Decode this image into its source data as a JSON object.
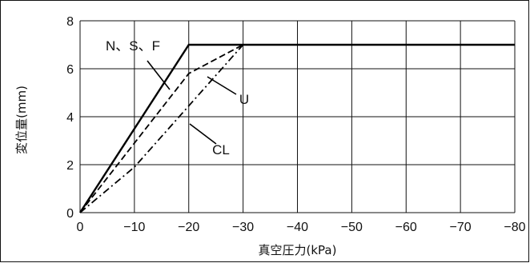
{
  "chart_data": {
    "type": "line",
    "title": "",
    "xlabel": "真空圧力(kPa)",
    "ylabel": "変位量(mm)",
    "xlim": [
      0,
      -80
    ],
    "ylim": [
      0,
      8
    ],
    "x_ticks": [
      0,
      -10,
      -20,
      -30,
      -40,
      -50,
      -60,
      -70,
      -80
    ],
    "x_tick_labels": [
      "0",
      "−10",
      "−20",
      "−30",
      "−40",
      "−50",
      "−60",
      "−70",
      "−80"
    ],
    "y_ticks": [
      0,
      2,
      4,
      6,
      8
    ],
    "y_tick_labels": [
      "0",
      "2",
      "4",
      "6",
      "8"
    ],
    "grid": true,
    "series": [
      {
        "name": "N、S、F",
        "style": "solid",
        "points": [
          [
            0,
            0
          ],
          [
            -20,
            7
          ],
          [
            -80,
            7
          ]
        ]
      },
      {
        "name": "U",
        "style": "dashed",
        "points": [
          [
            0,
            0
          ],
          [
            -20,
            5.8
          ],
          [
            -30,
            7
          ],
          [
            -80,
            7
          ]
        ]
      },
      {
        "name": "CL",
        "style": "dashdot",
        "points": [
          [
            0,
            0
          ],
          [
            -10,
            1.9
          ],
          [
            -30,
            7
          ],
          [
            -80,
            7
          ]
        ]
      }
    ],
    "annotations": [
      {
        "text": "N、S、F",
        "series": "N、S、F"
      },
      {
        "text": "U",
        "series": "U"
      },
      {
        "text": "CL",
        "series": "CL"
      }
    ]
  }
}
